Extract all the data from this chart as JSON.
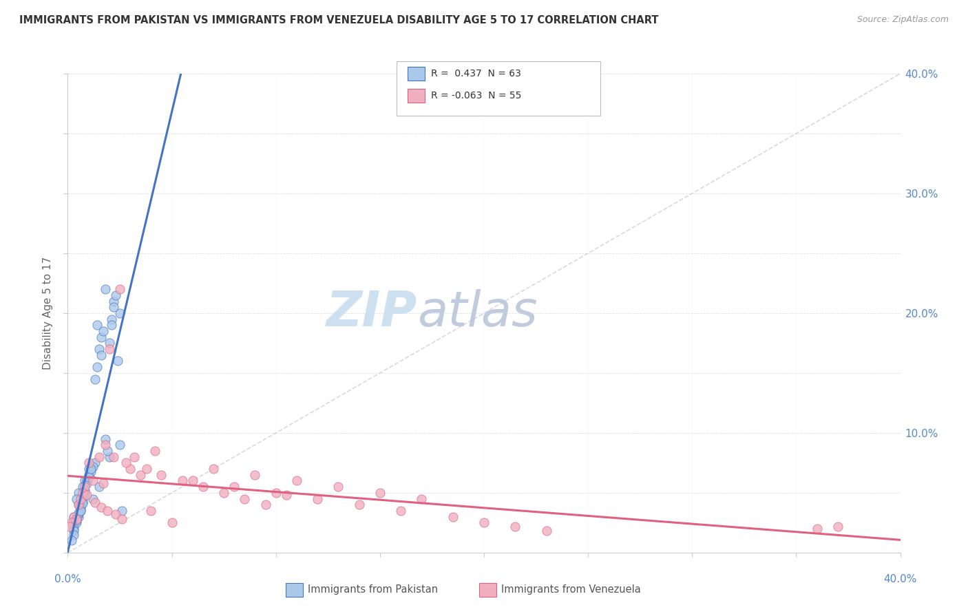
{
  "title": "IMMIGRANTS FROM PAKISTAN VS IMMIGRANTS FROM VENEZUELA DISABILITY AGE 5 TO 17 CORRELATION CHART",
  "source": "Source: ZipAtlas.com",
  "ylabel": "Disability Age 5 to 17",
  "r_pakistan": 0.437,
  "n_pakistan": 63,
  "r_venezuela": -0.063,
  "n_venezuela": 55,
  "color_pakistan": "#aac8e8",
  "color_venezuela": "#f0b0c0",
  "color_pakistan_line": "#4472c4",
  "color_venezuela_line": "#e06080",
  "color_diag": "#c0c0c0",
  "color_axis_labels": "#5588cc",
  "watermark_zip": "#ddeeff",
  "watermark_atlas": "#c8d8e8",
  "xmin": 0.0,
  "xmax": 0.4,
  "ymin": 0.0,
  "ymax": 0.4,
  "pakistan_x": [
    0.02,
    0.01,
    0.005,
    0.015,
    0.025,
    0.01,
    0.005,
    0.008,
    0.012,
    0.003,
    0.007,
    0.018,
    0.022,
    0.006,
    0.004,
    0.009,
    0.014,
    0.003,
    0.006,
    0.011,
    0.013,
    0.008,
    0.005,
    0.016,
    0.021,
    0.004,
    0.007,
    0.019,
    0.024,
    0.003,
    0.006,
    0.01,
    0.015,
    0.005,
    0.008,
    0.012,
    0.02,
    0.003,
    0.007,
    0.025,
    0.004,
    0.009,
    0.014,
    0.006,
    0.011,
    0.017,
    0.022,
    0.003,
    0.005,
    0.008,
    0.013,
    0.018,
    0.023,
    0.004,
    0.007,
    0.01,
    0.016,
    0.021,
    0.003,
    0.006,
    0.011,
    0.026,
    0.002
  ],
  "pakistan_y": [
    0.08,
    0.065,
    0.05,
    0.055,
    0.2,
    0.07,
    0.04,
    0.06,
    0.045,
    0.03,
    0.055,
    0.22,
    0.21,
    0.035,
    0.045,
    0.06,
    0.19,
    0.025,
    0.04,
    0.07,
    0.075,
    0.05,
    0.03,
    0.18,
    0.195,
    0.028,
    0.042,
    0.085,
    0.16,
    0.022,
    0.038,
    0.065,
    0.17,
    0.032,
    0.048,
    0.072,
    0.175,
    0.02,
    0.044,
    0.09,
    0.025,
    0.058,
    0.155,
    0.036,
    0.068,
    0.185,
    0.205,
    0.018,
    0.033,
    0.052,
    0.145,
    0.095,
    0.215,
    0.027,
    0.041,
    0.063,
    0.165,
    0.19,
    0.015,
    0.035,
    0.07,
    0.035,
    0.01
  ],
  "venezuela_x": [
    0.01,
    0.005,
    0.025,
    0.015,
    0.035,
    0.008,
    0.02,
    0.012,
    0.03,
    0.006,
    0.018,
    0.04,
    0.05,
    0.007,
    0.022,
    0.06,
    0.07,
    0.003,
    0.028,
    0.08,
    0.09,
    0.004,
    0.032,
    0.1,
    0.11,
    0.002,
    0.038,
    0.12,
    0.13,
    0.001,
    0.045,
    0.14,
    0.15,
    0.009,
    0.055,
    0.16,
    0.17,
    0.013,
    0.065,
    0.185,
    0.016,
    0.075,
    0.2,
    0.019,
    0.085,
    0.215,
    0.023,
    0.095,
    0.23,
    0.026,
    0.36,
    0.37,
    0.017,
    0.042,
    0.105
  ],
  "venezuela_y": [
    0.075,
    0.04,
    0.22,
    0.08,
    0.065,
    0.055,
    0.17,
    0.06,
    0.07,
    0.045,
    0.09,
    0.035,
    0.025,
    0.05,
    0.08,
    0.06,
    0.07,
    0.03,
    0.075,
    0.055,
    0.065,
    0.028,
    0.08,
    0.05,
    0.06,
    0.025,
    0.07,
    0.045,
    0.055,
    0.022,
    0.065,
    0.04,
    0.05,
    0.048,
    0.06,
    0.035,
    0.045,
    0.042,
    0.055,
    0.03,
    0.038,
    0.05,
    0.025,
    0.035,
    0.045,
    0.022,
    0.032,
    0.04,
    0.018,
    0.028,
    0.02,
    0.022,
    0.058,
    0.085,
    0.048
  ]
}
